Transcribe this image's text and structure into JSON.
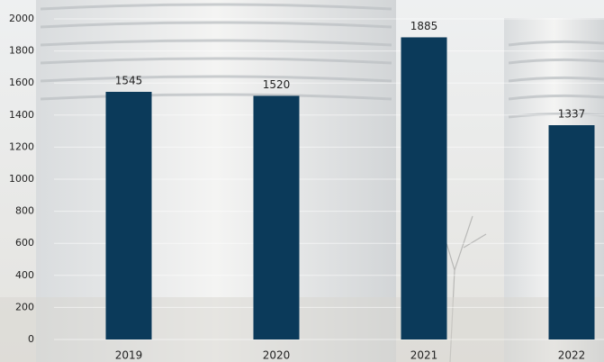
{
  "chart_data": {
    "type": "bar",
    "categories": [
      "2019",
      "2020",
      "2021",
      "2022"
    ],
    "values": [
      1545,
      1520,
      1885,
      1337
    ],
    "color": "#0b3a5a",
    "ylim": [
      0,
      2000
    ],
    "yticks": [
      0,
      200,
      400,
      600,
      800,
      1000,
      1200,
      1400,
      1600,
      1800,
      2000
    ],
    "grid": true
  }
}
